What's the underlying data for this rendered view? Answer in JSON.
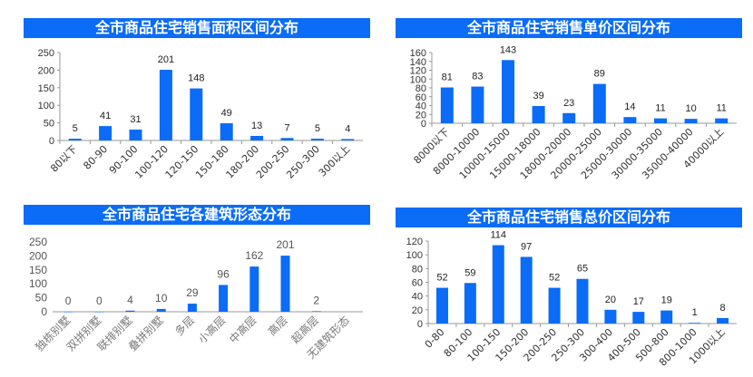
{
  "colors": {
    "bar": "#0a6cf7",
    "title_bg": "#0a6cf7",
    "axis": "#999999"
  },
  "chart_data": [
    {
      "type": "bar",
      "title": "全市商品住宅销售面积区间分布",
      "categories": [
        "80以下",
        "80-90",
        "90-100",
        "100-120",
        "120-150",
        "150-180",
        "180-200",
        "200-250",
        "250-300",
        "300以上"
      ],
      "values": [
        5,
        41,
        31,
        201,
        148,
        49,
        13,
        7,
        5,
        4
      ],
      "yticks": [
        0,
        50,
        100,
        150,
        200,
        250
      ],
      "ylim": [
        0,
        250
      ],
      "grid": false
    },
    {
      "type": "bar",
      "title": "全市商品住宅销售单价区间分布",
      "categories": [
        "8000以下",
        "8000-10000",
        "10000-15000",
        "15000-18000",
        "18000-20000",
        "20000-25000",
        "25000-30000",
        "30000-35000",
        "35000-40000",
        "40000以上"
      ],
      "values": [
        81,
        83,
        143,
        39,
        23,
        89,
        14,
        11,
        10,
        11
      ],
      "yticks": [
        0,
        20,
        40,
        60,
        80,
        100,
        120,
        140,
        160
      ],
      "ylim": [
        0,
        160
      ],
      "grid": false
    },
    {
      "type": "bar",
      "title": "全市商品住宅各建筑形态分布",
      "categories": [
        "独栋别墅",
        "双拼别墅",
        "联排别墅",
        "叠拼别墅",
        "多层",
        "小高层",
        "中高层",
        "高层",
        "超高层",
        "无建筑形态"
      ],
      "values": [
        0,
        0,
        4,
        10,
        29,
        96,
        162,
        201,
        2,
        null
      ],
      "yticks": [
        0,
        50,
        100,
        150,
        200,
        250
      ],
      "ylim": [
        0,
        250
      ],
      "grid": false
    },
    {
      "type": "bar",
      "title": "全市商品住宅销售总价区间分布",
      "categories": [
        "0-80",
        "80-100",
        "100-150",
        "150-200",
        "200-250",
        "250-300",
        "300-400",
        "400-500",
        "500-800",
        "800-1000",
        "1000以上"
      ],
      "values": [
        52,
        59,
        114,
        97,
        52,
        65,
        20,
        17,
        19,
        1,
        8
      ],
      "yticks": [
        0,
        20,
        40,
        60,
        80,
        100,
        120
      ],
      "ylim": [
        0,
        120
      ],
      "grid": false
    }
  ]
}
